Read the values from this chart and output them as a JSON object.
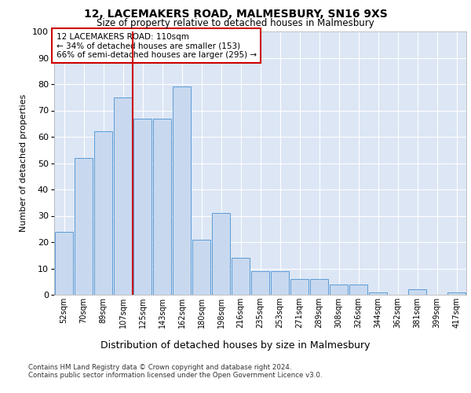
{
  "title": "12, LACEMAKERS ROAD, MALMESBURY, SN16 9XS",
  "subtitle": "Size of property relative to detached houses in Malmesbury",
  "xlabel": "Distribution of detached houses by size in Malmesbury",
  "ylabel": "Number of detached properties",
  "categories": [
    "52sqm",
    "70sqm",
    "89sqm",
    "107sqm",
    "125sqm",
    "143sqm",
    "162sqm",
    "180sqm",
    "198sqm",
    "216sqm",
    "235sqm",
    "253sqm",
    "271sqm",
    "289sqm",
    "308sqm",
    "326sqm",
    "344sqm",
    "362sqm",
    "381sqm",
    "399sqm",
    "417sqm"
  ],
  "values": [
    24,
    52,
    62,
    75,
    67,
    67,
    79,
    21,
    31,
    14,
    9,
    9,
    6,
    6,
    4,
    4,
    1,
    0,
    2,
    0,
    1
  ],
  "bar_color": "#c8d9ef",
  "bar_edge_color": "#5b9bd5",
  "vline_x": 3.5,
  "vline_color": "#cc0000",
  "annotation_title": "12 LACEMAKERS ROAD: 110sqm",
  "annotation_line1": "← 34% of detached houses are smaller (153)",
  "annotation_line2": "66% of semi-detached houses are larger (295) →",
  "annotation_box_color": "#cc0000",
  "ylim": [
    0,
    100
  ],
  "yticks": [
    0,
    10,
    20,
    30,
    40,
    50,
    60,
    70,
    80,
    90,
    100
  ],
  "plot_bg_color": "#dce6f5",
  "grid_color": "#ffffff",
  "footer1": "Contains HM Land Registry data © Crown copyright and database right 2024.",
  "footer2": "Contains public sector information licensed under the Open Government Licence v3.0."
}
